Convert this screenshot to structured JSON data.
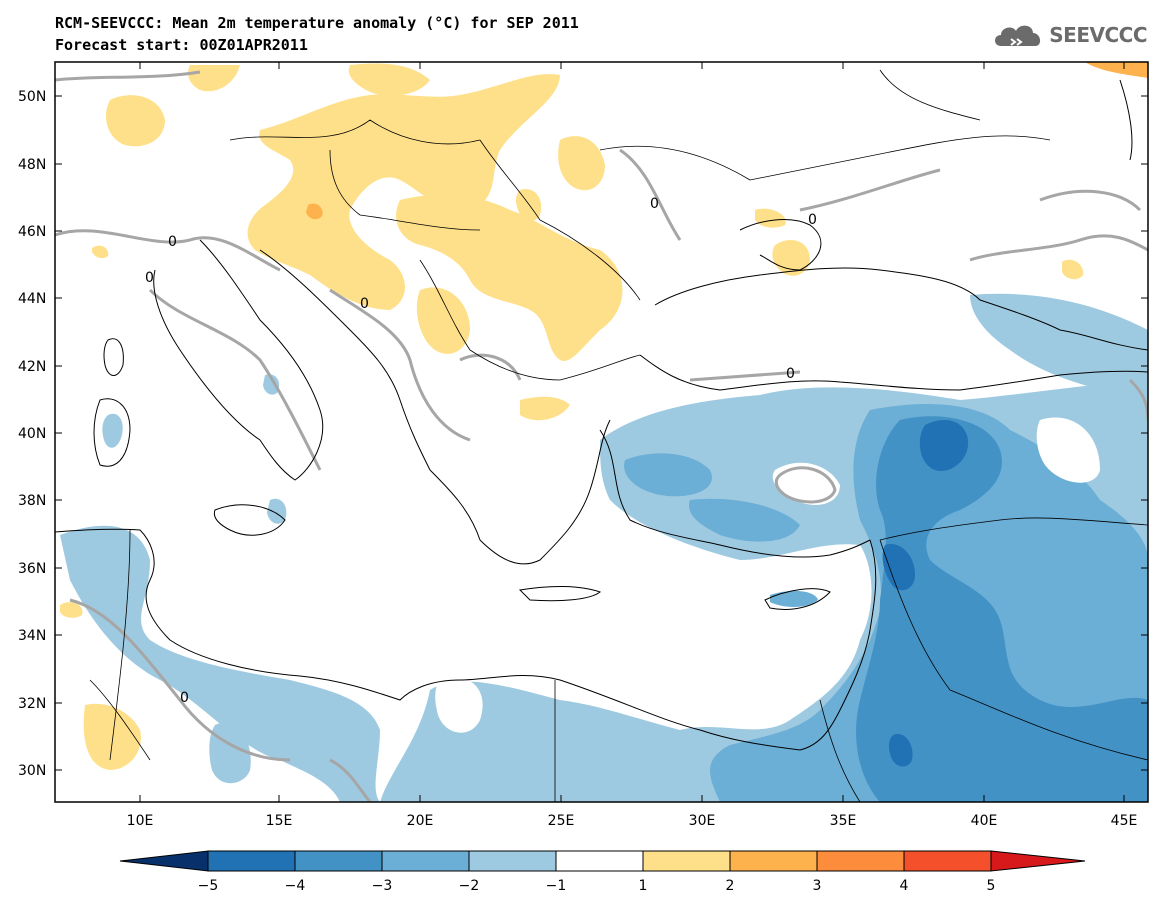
{
  "header": {
    "title_line1": "RCM-SEEVCCC: Mean 2m temperature anomaly (°C) for SEP 2011",
    "title_line2": "Forecast start: 00Z01APR2011",
    "logo_text": "SEEVCCC",
    "logo_icon": "cloud-icon"
  },
  "map": {
    "lat_labels": [
      "50N",
      "48N",
      "46N",
      "44N",
      "42N",
      "40N",
      "38N",
      "36N",
      "34N",
      "32N",
      "30N"
    ],
    "lon_labels": [
      "10E",
      "15E",
      "20E",
      "25E",
      "30E",
      "35E",
      "40E",
      "45E"
    ],
    "contour_label": "0"
  },
  "colorbar": {
    "colors": [
      "#08306b",
      "#2171b5",
      "#4292c6",
      "#6baed6",
      "#9ecae1",
      "#ffffff",
      "#ffe08a",
      "#fdb24d",
      "#fd8d3c",
      "#f4502c",
      "#d7191c"
    ],
    "tick_labels": [
      "−5",
      "−4",
      "−3",
      "−2",
      "−1",
      "1",
      "2",
      "3",
      "4",
      "5"
    ]
  }
}
